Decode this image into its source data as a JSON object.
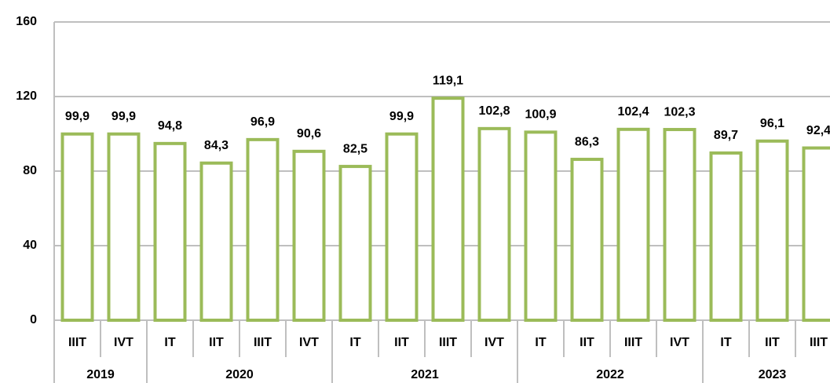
{
  "chart_data": {
    "type": "bar",
    "categories": [
      "IIIT",
      "IVT",
      "IT",
      "IIT",
      "IIIT",
      "IVT",
      "IT",
      "IIT",
      "IIIT",
      "IVT",
      "IT",
      "IIT",
      "IIIT",
      "IVT",
      "IT",
      "IIT",
      "IIIT"
    ],
    "groups": [
      {
        "label": "2019",
        "count": 2
      },
      {
        "label": "2020",
        "count": 4
      },
      {
        "label": "2021",
        "count": 4
      },
      {
        "label": "2022",
        "count": 4
      },
      {
        "label": "2023",
        "count": 3
      }
    ],
    "values": [
      99.9,
      99.9,
      94.8,
      84.3,
      96.9,
      90.6,
      82.5,
      99.9,
      119.1,
      102.8,
      100.9,
      86.3,
      102.4,
      102.3,
      89.7,
      96.1,
      92.4
    ],
    "value_labels": [
      "99,9",
      "99,9",
      "94,8",
      "84,3",
      "96,9",
      "90,6",
      "82,5",
      "99,9",
      "119,1",
      "102,8",
      "100,9",
      "86,3",
      "102,4",
      "102,3",
      "89,7",
      "96,1",
      "92,4"
    ],
    "color": "#9bbb59",
    "ylim": [
      0,
      160
    ],
    "yticks": [
      0,
      40,
      80,
      120,
      160
    ],
    "grid": true
  }
}
